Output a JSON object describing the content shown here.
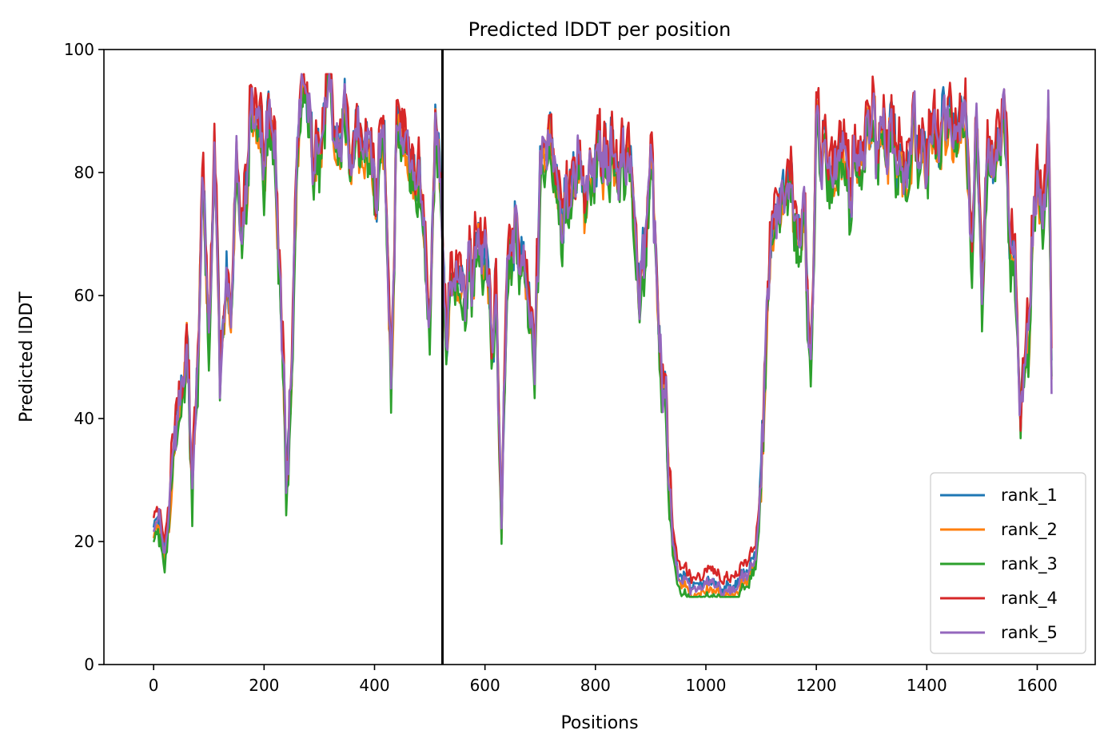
{
  "chart_data": {
    "type": "line",
    "title": "Predicted lDDT per position",
    "xlabel": "Positions",
    "ylabel": "Predicted lDDT",
    "xlim": [
      -90,
      1705
    ],
    "ylim": [
      0,
      100
    ],
    "xticks": [
      0,
      200,
      400,
      600,
      800,
      1000,
      1200,
      1400,
      1600
    ],
    "yticks": [
      0,
      20,
      40,
      60,
      80,
      100
    ],
    "grid": false,
    "legend_position": "lower right",
    "vline_x": 523,
    "series": [
      {
        "name": "rank_1",
        "color": "#1f77b4",
        "offset": 0.0
      },
      {
        "name": "rank_2",
        "color": "#ff7f0e",
        "offset": -1.5
      },
      {
        "name": "rank_3",
        "color": "#2ca02c",
        "offset": -2.5
      },
      {
        "name": "rank_4",
        "color": "#d62728",
        "offset": 1.5
      },
      {
        "name": "rank_5",
        "color": "#9467bd",
        "offset": -0.5
      }
    ],
    "profile": {
      "x": [
        0,
        10,
        20,
        30,
        40,
        50,
        60,
        70,
        80,
        90,
        100,
        110,
        120,
        130,
        140,
        150,
        160,
        175,
        190,
        200,
        210,
        220,
        230,
        240,
        250,
        260,
        270,
        280,
        290,
        300,
        310,
        320,
        330,
        340,
        350,
        360,
        380,
        400,
        420,
        430,
        440,
        460,
        480,
        490,
        500,
        510,
        523,
        530,
        540,
        560,
        580,
        600,
        610,
        620,
        630,
        640,
        650,
        660,
        680,
        690,
        700,
        720,
        740,
        760,
        780,
        800,
        820,
        840,
        860,
        880,
        900,
        910,
        920,
        930,
        940,
        950,
        960,
        980,
        1000,
        1020,
        1040,
        1060,
        1080,
        1090,
        1100,
        1110,
        1120,
        1140,
        1160,
        1180,
        1190,
        1200,
        1210,
        1220,
        1240,
        1260,
        1280,
        1300,
        1320,
        1340,
        1360,
        1380,
        1400,
        1420,
        1440,
        1460,
        1470,
        1480,
        1490,
        1500,
        1510,
        1520,
        1540,
        1550,
        1560,
        1570,
        1580,
        1590,
        1600,
        1610,
        1620,
        1626
      ],
      "y": [
        22,
        25,
        18,
        28,
        40,
        45,
        52,
        30,
        45,
        80,
        55,
        86,
        50,
        65,
        55,
        82,
        70,
        88,
        90,
        80,
        88,
        82,
        60,
        32,
        45,
        85,
        92,
        88,
        80,
        85,
        91,
        93,
        88,
        85,
        90,
        82,
        88,
        78,
        82,
        50,
        85,
        84,
        80,
        70,
        55,
        88,
        72,
        50,
        65,
        60,
        68,
        66,
        55,
        58,
        22,
        62,
        72,
        68,
        60,
        45,
        85,
        86,
        70,
        83,
        75,
        85,
        84,
        80,
        86,
        60,
        82,
        70,
        45,
        40,
        20,
        15,
        14,
        13,
        13,
        13,
        13,
        14,
        16,
        18,
        28,
        60,
        70,
        80,
        75,
        72,
        45,
        88,
        85,
        80,
        84,
        78,
        86,
        88,
        84,
        85,
        78,
        88,
        82,
        86,
        90,
        85,
        88,
        65,
        88,
        60,
        85,
        80,
        88,
        70,
        62,
        40,
        50,
        65,
        80,
        75,
        88,
        50
      ]
    }
  }
}
